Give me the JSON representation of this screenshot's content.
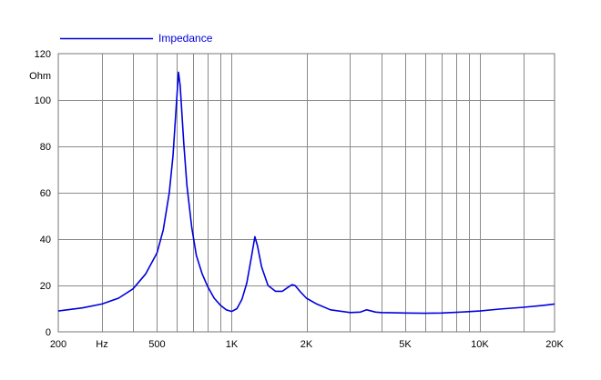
{
  "chart_data": {
    "type": "line",
    "x_scale": "log",
    "xlim": [
      200,
      20000
    ],
    "ylim": [
      0,
      120
    ],
    "grid": true,
    "legend_position": "top-left",
    "ylabel": "Ohm",
    "xlabel": "Hz",
    "x_ticks": [
      {
        "value": 200,
        "label": "200"
      },
      {
        "value": 500,
        "label": "500"
      },
      {
        "value": 1000,
        "label": "1K"
      },
      {
        "value": 2000,
        "label": "2K"
      },
      {
        "value": 5000,
        "label": "5K"
      },
      {
        "value": 10000,
        "label": "10K"
      },
      {
        "value": 20000,
        "label": "20K"
      }
    ],
    "x_gridlines": [
      300,
      400,
      500,
      600,
      700,
      800,
      900,
      1000,
      2000,
      3000,
      4000,
      5000,
      6000,
      7000,
      8000,
      9000,
      10000,
      15000
    ],
    "y_ticks": [
      0,
      20,
      40,
      60,
      80,
      100,
      120
    ],
    "series": [
      {
        "name": "Impedance",
        "color": "#0000dd",
        "points": [
          [
            200,
            9.0
          ],
          [
            250,
            10.3
          ],
          [
            300,
            12.0
          ],
          [
            350,
            14.5
          ],
          [
            400,
            18.5
          ],
          [
            450,
            25.0
          ],
          [
            500,
            34.0
          ],
          [
            530,
            44.0
          ],
          [
            560,
            60.0
          ],
          [
            580,
            76.0
          ],
          [
            600,
            100.0
          ],
          [
            610,
            112.0
          ],
          [
            620,
            106.0
          ],
          [
            640,
            82.0
          ],
          [
            660,
            63.0
          ],
          [
            690,
            45.0
          ],
          [
            720,
            33.0
          ],
          [
            760,
            25.0
          ],
          [
            800,
            19.5
          ],
          [
            850,
            14.5
          ],
          [
            900,
            11.5
          ],
          [
            950,
            9.5
          ],
          [
            1000,
            8.8
          ],
          [
            1050,
            10.0
          ],
          [
            1100,
            14.0
          ],
          [
            1150,
            21.0
          ],
          [
            1200,
            32.0
          ],
          [
            1240,
            41.0
          ],
          [
            1270,
            37.0
          ],
          [
            1320,
            28.0
          ],
          [
            1400,
            20.0
          ],
          [
            1500,
            17.5
          ],
          [
            1600,
            17.5
          ],
          [
            1700,
            19.5
          ],
          [
            1750,
            20.3
          ],
          [
            1800,
            20.0
          ],
          [
            1900,
            17.0
          ],
          [
            2000,
            14.5
          ],
          [
            2200,
            12.0
          ],
          [
            2500,
            9.5
          ],
          [
            3000,
            8.3
          ],
          [
            3300,
            8.5
          ],
          [
            3500,
            9.5
          ],
          [
            3800,
            8.5
          ],
          [
            4000,
            8.3
          ],
          [
            4500,
            8.2
          ],
          [
            5000,
            8.1
          ],
          [
            6000,
            8.0
          ],
          [
            7000,
            8.1
          ],
          [
            8000,
            8.4
          ],
          [
            9000,
            8.7
          ],
          [
            10000,
            9.0
          ],
          [
            12000,
            9.8
          ],
          [
            15000,
            10.6
          ],
          [
            18000,
            11.4
          ],
          [
            20000,
            12.0
          ]
        ]
      }
    ]
  }
}
